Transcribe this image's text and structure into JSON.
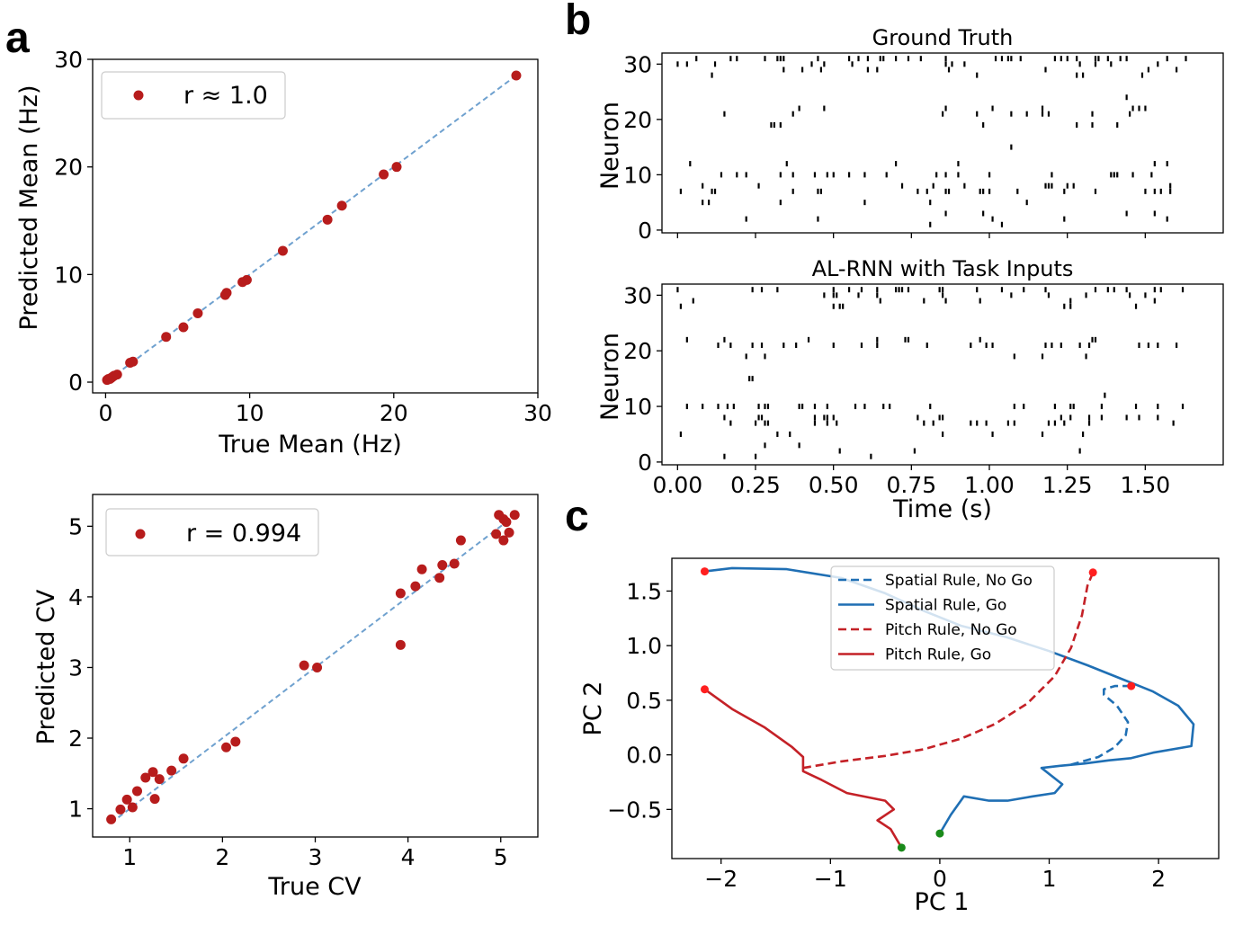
{
  "panels": {
    "a": "a",
    "b": "b",
    "c": "c"
  },
  "colors": {
    "red": "#b71c1c",
    "fit": "#6fa1cf",
    "blue": "#1f6fb4",
    "pc_red": "#c42127",
    "end_red": "#ff1f1f",
    "start_green": "#1a8a1a"
  },
  "chart_data": [
    {
      "id": "mean",
      "type": "scatter",
      "xlabel": "True Mean (Hz)",
      "ylabel": "Predicted Mean (Hz)",
      "xlim": [
        -0.9,
        30
      ],
      "ylim": [
        -1.0,
        30
      ],
      "xticks": [
        0,
        10,
        20,
        30
      ],
      "yticks": [
        0,
        10,
        20,
        30
      ],
      "legend": "r ≈ 1.0",
      "fit_line": [
        [
          0.2,
          0.2
        ],
        [
          28.6,
          28.6
        ]
      ],
      "points": [
        [
          0.1,
          0.2
        ],
        [
          0.2,
          0.3
        ],
        [
          0.3,
          0.3
        ],
        [
          0.4,
          0.4
        ],
        [
          0.5,
          0.5
        ],
        [
          0.6,
          0.6
        ],
        [
          0.8,
          0.7
        ],
        [
          1.7,
          1.8
        ],
        [
          1.9,
          1.9
        ],
        [
          4.2,
          4.2
        ],
        [
          5.4,
          5.1
        ],
        [
          6.4,
          6.4
        ],
        [
          8.3,
          8.1
        ],
        [
          8.4,
          8.3
        ],
        [
          9.5,
          9.3
        ],
        [
          9.8,
          9.5
        ],
        [
          12.3,
          12.2
        ],
        [
          15.4,
          15.1
        ],
        [
          16.4,
          16.4
        ],
        [
          19.3,
          19.3
        ],
        [
          20.2,
          20.0
        ],
        [
          28.5,
          28.5
        ]
      ]
    },
    {
      "id": "cv",
      "type": "scatter",
      "xlabel": "True CV",
      "ylabel": "Predicted CV",
      "xlim": [
        0.6,
        5.4
      ],
      "ylim": [
        0.6,
        5.45
      ],
      "xticks": [
        1,
        2,
        3,
        4,
        5
      ],
      "yticks": [
        1,
        2,
        3,
        4,
        5
      ],
      "legend": "r = 0.994",
      "fit_line": [
        [
          0.8,
          0.8
        ],
        [
          5.1,
          5.1
        ]
      ],
      "points": [
        [
          0.8,
          0.85
        ],
        [
          0.9,
          0.99
        ],
        [
          0.97,
          1.13
        ],
        [
          1.03,
          1.02
        ],
        [
          1.08,
          1.25
        ],
        [
          1.17,
          1.44
        ],
        [
          1.25,
          1.52
        ],
        [
          1.27,
          1.14
        ],
        [
          1.32,
          1.42
        ],
        [
          1.45,
          1.54
        ],
        [
          1.58,
          1.71
        ],
        [
          2.04,
          1.87
        ],
        [
          2.14,
          1.95
        ],
        [
          2.88,
          3.03
        ],
        [
          3.02,
          3.0
        ],
        [
          3.92,
          3.32
        ],
        [
          3.92,
          4.05
        ],
        [
          4.08,
          4.15
        ],
        [
          4.15,
          4.39
        ],
        [
          4.34,
          4.27
        ],
        [
          4.37,
          4.45
        ],
        [
          4.5,
          4.47
        ],
        [
          4.57,
          4.8
        ],
        [
          4.95,
          4.89
        ],
        [
          4.98,
          5.16
        ],
        [
          5.03,
          5.1
        ],
        [
          5.03,
          4.8
        ],
        [
          5.06,
          5.06
        ],
        [
          5.09,
          4.91
        ],
        [
          5.15,
          5.16
        ]
      ]
    },
    {
      "id": "raster",
      "type": "scatter",
      "subplots": [
        "Ground Truth",
        "AL-RNN with Task Inputs"
      ],
      "xlabel": "Time (s)",
      "ylabel": "Neuron",
      "xlim": [
        -0.05,
        1.75
      ],
      "ylim": [
        -0.5,
        32
      ],
      "xticks": [
        "0.00",
        "0.25",
        "0.50",
        "0.75",
        "1.00",
        "1.25",
        "1.50"
      ],
      "yticks": [
        0,
        10,
        20,
        30
      ]
    },
    {
      "id": "pca",
      "type": "line",
      "xlabel": "PC 1",
      "ylabel": "PC 2",
      "xlim": [
        -2.45,
        2.55
      ],
      "ylim": [
        -0.95,
        1.8
      ],
      "xticks": [
        "−2",
        "−1",
        "0",
        "1",
        "2"
      ],
      "yticks": [
        "−0.5",
        "0.0",
        "0.5",
        "1.0",
        "1.5"
      ],
      "legend_position": "top-center",
      "series": [
        {
          "name": "Spatial Rule, No Go",
          "style": "dashed",
          "color": "#1f6fb4",
          "points": [
            [
              1.2,
              -0.09
            ],
            [
              1.45,
              -0.02
            ],
            [
              1.6,
              0.07
            ],
            [
              1.7,
              0.18
            ],
            [
              1.72,
              0.3
            ],
            [
              1.62,
              0.45
            ],
            [
              1.5,
              0.55
            ],
            [
              1.5,
              0.6
            ],
            [
              1.6,
              0.63
            ],
            [
              1.75,
              0.63
            ]
          ]
        },
        {
          "name": "Spatial Rule, Go",
          "style": "solid",
          "color": "#1f6fb4",
          "points": [
            [
              0.0,
              -0.72
            ],
            [
              0.1,
              -0.55
            ],
            [
              0.22,
              -0.38
            ],
            [
              0.45,
              -0.42
            ],
            [
              0.62,
              -0.42
            ],
            [
              0.85,
              -0.38
            ],
            [
              1.05,
              -0.35
            ],
            [
              1.12,
              -0.27
            ],
            [
              0.93,
              -0.12
            ],
            [
              1.1,
              -0.1
            ],
            [
              1.32,
              -0.08
            ],
            [
              1.55,
              -0.05
            ],
            [
              1.75,
              -0.03
            ],
            [
              1.95,
              0.02
            ],
            [
              2.3,
              0.08
            ],
            [
              2.32,
              0.28
            ],
            [
              2.18,
              0.45
            ],
            [
              1.95,
              0.58
            ],
            [
              1.7,
              0.68
            ],
            [
              1.35,
              0.82
            ],
            [
              1.0,
              0.95
            ],
            [
              0.6,
              1.08
            ],
            [
              0.2,
              1.18
            ],
            [
              -0.15,
              1.32
            ],
            [
              -0.5,
              1.48
            ],
            [
              -0.9,
              1.62
            ],
            [
              -1.4,
              1.7
            ],
            [
              -1.9,
              1.71
            ],
            [
              -2.15,
              1.68
            ]
          ]
        },
        {
          "name": "Pitch Rule, No Go",
          "style": "dashed",
          "color": "#c42127",
          "points": [
            [
              -1.25,
              -0.12
            ],
            [
              -0.9,
              -0.06
            ],
            [
              -0.5,
              -0.01
            ],
            [
              -0.15,
              0.05
            ],
            [
              0.2,
              0.15
            ],
            [
              0.5,
              0.28
            ],
            [
              0.8,
              0.47
            ],
            [
              1.05,
              0.72
            ],
            [
              1.2,
              0.98
            ],
            [
              1.3,
              1.28
            ],
            [
              1.35,
              1.55
            ],
            [
              1.4,
              1.67
            ]
          ]
        },
        {
          "name": "Pitch Rule, Go",
          "style": "solid",
          "color": "#c42127",
          "points": [
            [
              -2.15,
              0.6
            ],
            [
              -1.9,
              0.42
            ],
            [
              -1.6,
              0.25
            ],
            [
              -1.35,
              0.07
            ],
            [
              -1.25,
              -0.02
            ],
            [
              -1.25,
              -0.15
            ],
            [
              -1.08,
              -0.23
            ],
            [
              -0.85,
              -0.35
            ],
            [
              -0.5,
              -0.42
            ],
            [
              -0.42,
              -0.5
            ],
            [
              -0.57,
              -0.6
            ],
            [
              -0.45,
              -0.68
            ],
            [
              -0.35,
              -0.85
            ]
          ]
        }
      ],
      "end_markers": [
        [
          -2.15,
          1.68
        ],
        [
          1.4,
          1.67
        ],
        [
          1.75,
          0.63
        ],
        [
          -2.15,
          0.6
        ]
      ],
      "start_markers": [
        [
          0.0,
          -0.72
        ],
        [
          -0.35,
          -0.85
        ]
      ]
    }
  ]
}
